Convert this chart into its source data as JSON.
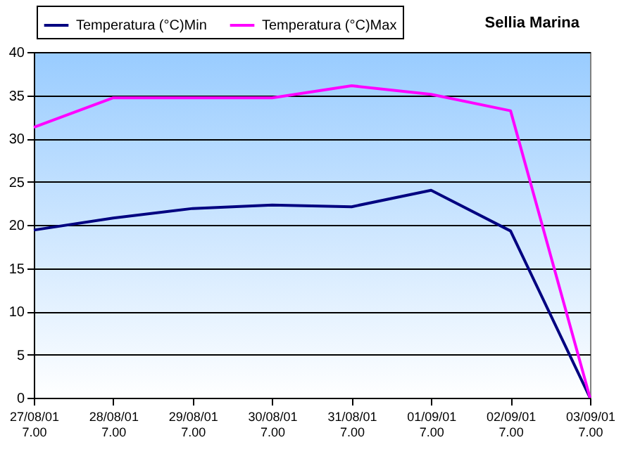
{
  "chart_data": {
    "type": "line",
    "title": "Sellia Marina",
    "categories": [
      "27/08/01 7.00",
      "28/08/01 7.00",
      "29/08/01 7.00",
      "30/08/01 7.00",
      "31/08/01 7.00",
      "01/09/01 7.00",
      "02/09/01 7.00",
      "03/09/01 7.00"
    ],
    "series": [
      {
        "name": "Temperatura (°C)Min",
        "color": "#000080",
        "values": [
          19.4,
          20.8,
          21.9,
          22.3,
          22.1,
          24.0,
          19.3,
          0
        ]
      },
      {
        "name": "Temperatura (°C)Max",
        "color": "#ff00ff",
        "values": [
          31.3,
          34.7,
          34.7,
          34.7,
          36.1,
          35.1,
          33.2,
          0
        ]
      }
    ],
    "ylim": [
      0,
      40
    ],
    "yticks": [
      0,
      5,
      10,
      15,
      20,
      25,
      30,
      35,
      40
    ],
    "grid": "y",
    "legend": "top left",
    "marker": "none",
    "line_style": "solid"
  }
}
